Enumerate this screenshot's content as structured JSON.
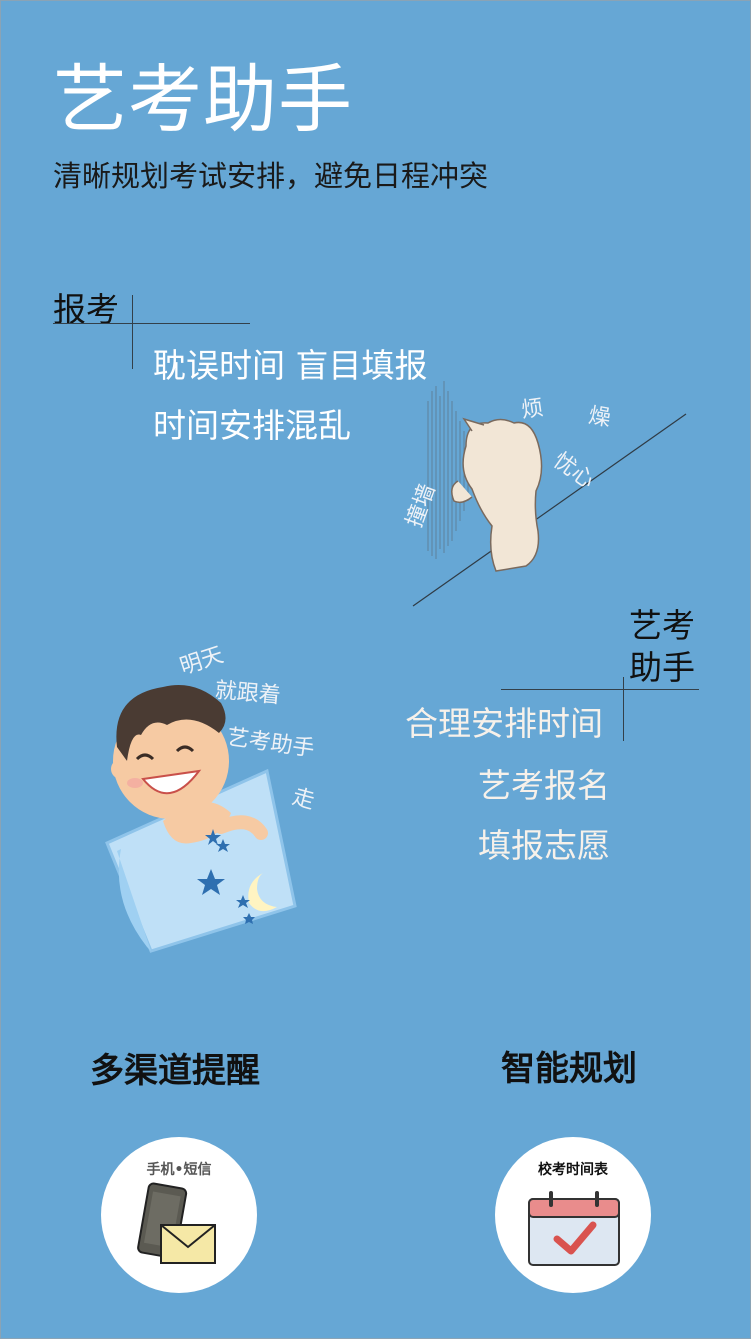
{
  "header": {
    "app_title": "艺考助手",
    "subtitle": "清晰规划考试安排，避免日程冲突"
  },
  "problems": {
    "heading": "报考",
    "lines": [
      "耽误时间  盲目填报",
      "时间安排混乱"
    ],
    "doodle_words": [
      "烦",
      "燥",
      "忧心",
      "撞墙"
    ]
  },
  "solution": {
    "heading_line1": "艺考",
    "heading_line2": "助手",
    "lines": [
      "合理安排时间",
      "艺考报名",
      "填报志愿"
    ],
    "doodle_words": [
      "明天",
      "就跟着",
      "艺考助手",
      "走"
    ]
  },
  "features": [
    {
      "title": "多渠道提醒",
      "badge_label": "手机•短信",
      "icon": "phone-sms-icon"
    },
    {
      "title": "智能规划",
      "badge_label": "校考时间表",
      "icon": "calendar-check-icon"
    }
  ],
  "colors": {
    "background": "#66a7d5",
    "calendar_header": "#e98c8c",
    "check": "#d9534f"
  }
}
